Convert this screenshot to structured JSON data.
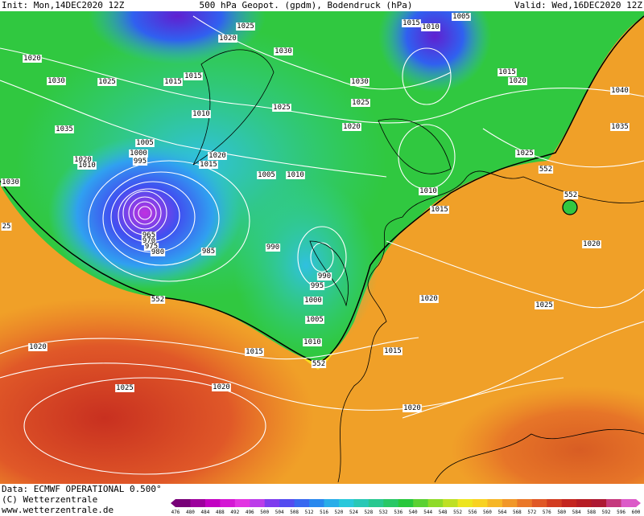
{
  "header": {
    "init": "Init: Mon,14DEC2020 12Z",
    "title": "500 hPa Geopot. (gpdm), Bodendruck (hPa)",
    "valid": "Valid: Wed,16DEC2020 12Z"
  },
  "map": {
    "isobar_labels": [
      1025,
      1020,
      1030,
      1015,
      1010,
      1005,
      1020,
      1030,
      1025,
      1015,
      1015,
      1030,
      1015,
      1020,
      1040,
      1025,
      1025,
      1010,
      1020,
      1035,
      1035,
      1005,
      1000,
      995,
      1020,
      1010,
      1020,
      1015,
      1025,
      552,
      1005,
      1010,
      1030,
      552,
      1010,
      1015,
      25,
      965,
      970,
      975,
      980,
      985,
      990,
      1020,
      990,
      995,
      1020,
      1025,
      552,
      1000,
      1005,
      1010,
      1015,
      1015,
      552,
      1020,
      1025,
      1020,
      1020
    ]
  },
  "footer": {
    "data": "Data: ECMWF OPERATIONAL 0.500°",
    "copyright": "(C) Wetterzentrale",
    "url": "www.wetterzentrale.de"
  },
  "colorbar": {
    "ticks": [
      476,
      480,
      484,
      488,
      492,
      496,
      500,
      504,
      508,
      512,
      516,
      520,
      524,
      528,
      532,
      536,
      540,
      544,
      548,
      552,
      556,
      560,
      564,
      568,
      572,
      576,
      580,
      584,
      588,
      592,
      596,
      600
    ]
  }
}
